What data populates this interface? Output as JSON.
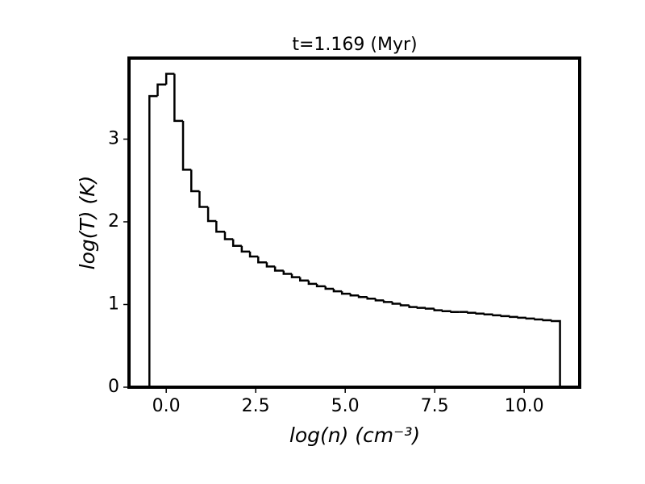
{
  "chart_data": {
    "type": "histogram",
    "title": "t=1.169 (Myr)",
    "x_label": "log(n) (cm⁻³)",
    "y_label": "log(T) (K)",
    "bins": [
      -0.47,
      -0.24,
      0,
      0.23,
      0.47,
      0.7,
      0.93,
      1.17,
      1.4,
      1.64,
      1.87,
      2.11,
      2.34,
      2.57,
      2.81,
      3.04,
      3.28,
      3.51,
      3.74,
      3.98,
      4.21,
      4.45,
      4.68,
      4.91,
      5.15,
      5.38,
      5.62,
      5.85,
      6.08,
      6.32,
      6.55,
      6.79,
      7.02,
      7.25,
      7.49,
      7.72,
      7.96,
      8.19,
      8.43,
      8.66,
      8.89,
      9.13,
      9.36,
      9.6,
      9.83,
      10.06,
      10.3,
      10.53,
      10.77,
      11.0
    ],
    "values": [
      3.52,
      3.66,
      3.79,
      3.22,
      2.63,
      2.37,
      2.18,
      2.01,
      1.88,
      1.79,
      1.71,
      1.64,
      1.58,
      1.51,
      1.46,
      1.41,
      1.37,
      1.33,
      1.29,
      1.25,
      1.22,
      1.19,
      1.16,
      1.13,
      1.11,
      1.09,
      1.07,
      1.05,
      1.03,
      1.01,
      0.99,
      0.97,
      0.96,
      0.95,
      0.93,
      0.92,
      0.91,
      0.91,
      0.9,
      0.89,
      0.88,
      0.87,
      0.86,
      0.85,
      0.84,
      0.83,
      0.82,
      0.81,
      0.8
    ],
    "color": "#000000",
    "xlim": [
      -1.04,
      11.55
    ],
    "ylim": [
      0,
      3.98
    ],
    "xticks": [
      {
        "value": 0,
        "label": "0.0"
      },
      2.5,
      {
        "value": 5,
        "label": "5.0"
      },
      7.5,
      {
        "value": 10,
        "label": "10.0"
      }
    ],
    "yticks": [
      0,
      1,
      2,
      3
    ],
    "grid": false
  }
}
